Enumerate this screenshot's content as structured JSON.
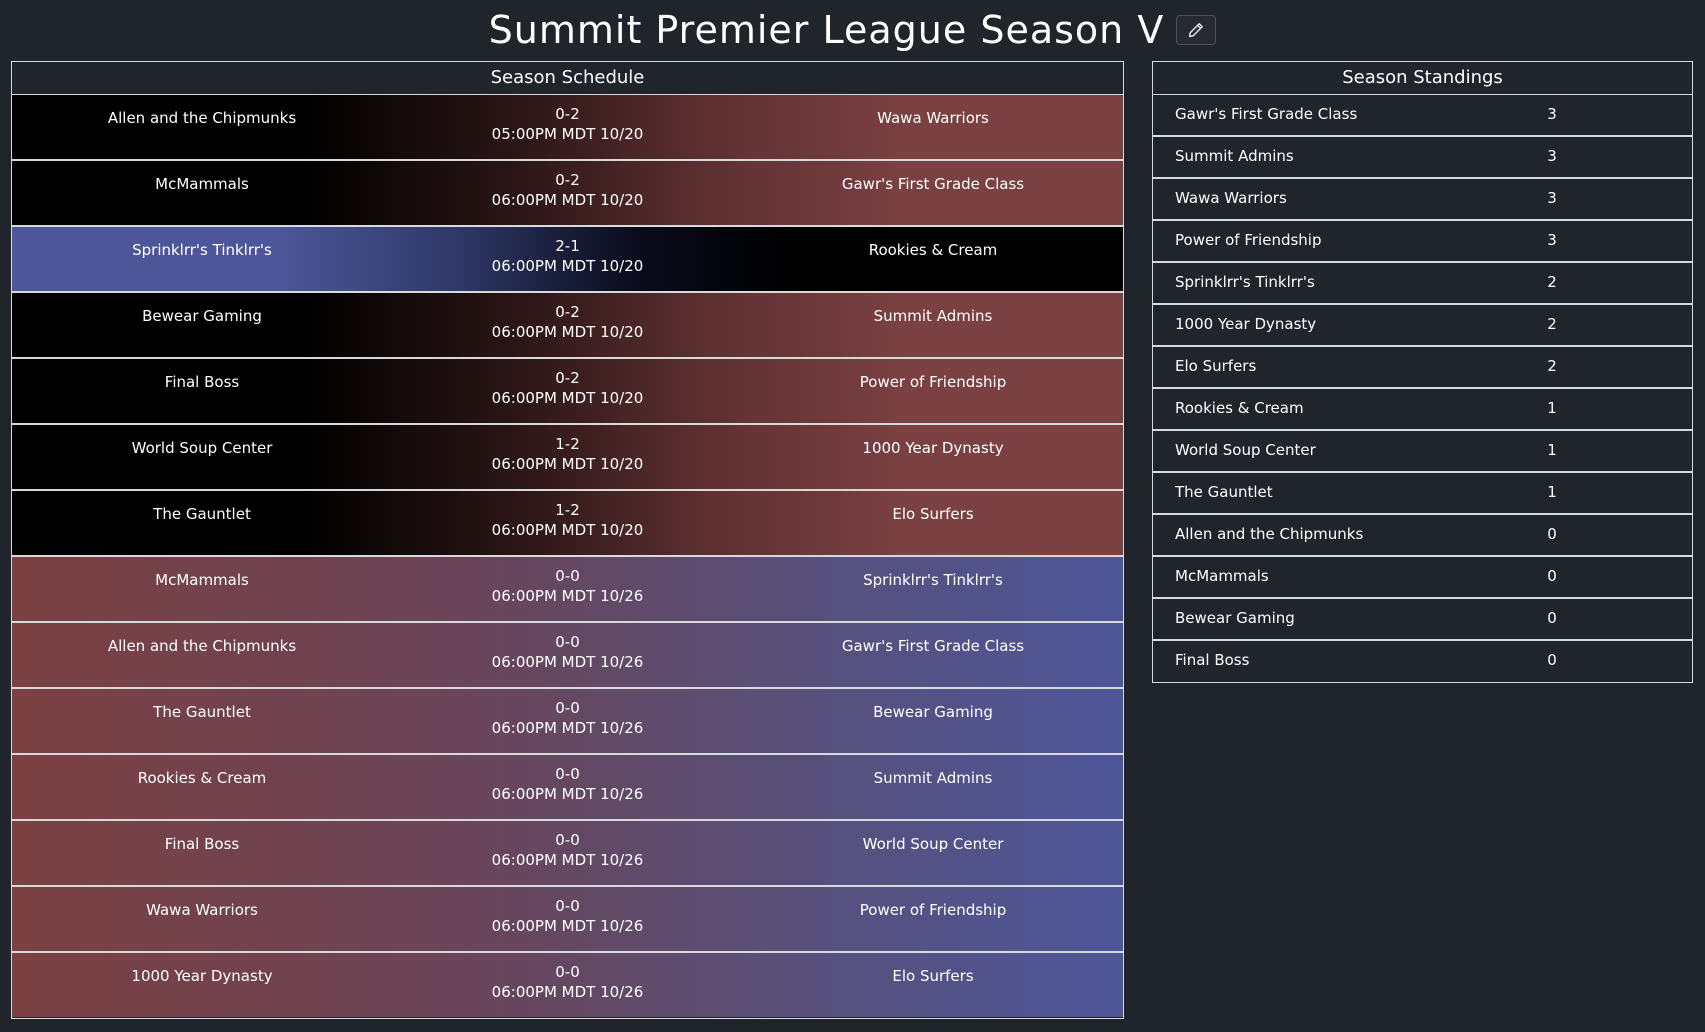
{
  "header": {
    "title": "Summit Premier League Season V",
    "edit_icon": "pencil-icon"
  },
  "schedule": {
    "title": "Season Schedule",
    "matches": [
      {
        "team_a": "Allen and the Chipmunks",
        "score": "0-2",
        "time": "05:00PM MDT 10/20",
        "team_b": "Wawa Warriors"
      },
      {
        "team_a": "McMammals",
        "score": "0-2",
        "time": "06:00PM MDT 10/20",
        "team_b": "Gawr's First Grade Class"
      },
      {
        "team_a": "Sprinklrr's Tinklrr's",
        "score": "2-1",
        "time": "06:00PM MDT 10/20",
        "team_b": "Rookies & Cream"
      },
      {
        "team_a": "Bewear Gaming",
        "score": "0-2",
        "time": "06:00PM MDT 10/20",
        "team_b": "Summit Admins"
      },
      {
        "team_a": "Final Boss",
        "score": "0-2",
        "time": "06:00PM MDT 10/20",
        "team_b": "Power of Friendship"
      },
      {
        "team_a": "World Soup Center",
        "score": "1-2",
        "time": "06:00PM MDT 10/20",
        "team_b": "1000 Year Dynasty"
      },
      {
        "team_a": "The Gauntlet",
        "score": "1-2",
        "time": "06:00PM MDT 10/20",
        "team_b": "Elo Surfers"
      },
      {
        "team_a": "McMammals",
        "score": "0-0",
        "time": "06:00PM MDT 10/26",
        "team_b": "Sprinklrr's Tinklrr's"
      },
      {
        "team_a": "Allen and the Chipmunks",
        "score": "0-0",
        "time": "06:00PM MDT 10/26",
        "team_b": "Gawr's First Grade Class"
      },
      {
        "team_a": "The Gauntlet",
        "score": "0-0",
        "time": "06:00PM MDT 10/26",
        "team_b": "Bewear Gaming"
      },
      {
        "team_a": "Rookies & Cream",
        "score": "0-0",
        "time": "06:00PM MDT 10/26",
        "team_b": "Summit Admins"
      },
      {
        "team_a": "Final Boss",
        "score": "0-0",
        "time": "06:00PM MDT 10/26",
        "team_b": "World Soup Center"
      },
      {
        "team_a": "Wawa Warriors",
        "score": "0-0",
        "time": "06:00PM MDT 10/26",
        "team_b": "Power of Friendship"
      },
      {
        "team_a": "1000 Year Dynasty",
        "score": "0-0",
        "time": "06:00PM MDT 10/26",
        "team_b": "Elo Surfers"
      }
    ]
  },
  "standings": {
    "title": "Season Standings",
    "rows": [
      {
        "team": "Gawr's First Grade Class",
        "points": "3"
      },
      {
        "team": "Summit Admins",
        "points": "3"
      },
      {
        "team": "Wawa Warriors",
        "points": "3"
      },
      {
        "team": "Power of Friendship",
        "points": "3"
      },
      {
        "team": "Sprinklrr's Tinklrr's",
        "points": "2"
      },
      {
        "team": "1000 Year Dynasty",
        "points": "2"
      },
      {
        "team": "Elo Surfers",
        "points": "2"
      },
      {
        "team": "Rookies & Cream",
        "points": "1"
      },
      {
        "team": "World Soup Center",
        "points": "1"
      },
      {
        "team": "The Gauntlet",
        "points": "1"
      },
      {
        "team": "Allen and the Chipmunks",
        "points": "0"
      },
      {
        "team": "McMammals",
        "points": "0"
      },
      {
        "team": "Bewear Gaming",
        "points": "0"
      },
      {
        "team": "Final Boss",
        "points": "0"
      }
    ]
  },
  "colors": {
    "background": "#20242b",
    "winner_blue": "#4c5699",
    "loser_black": "#000000",
    "red": "#7a4042",
    "border": "#d7d9dc"
  }
}
